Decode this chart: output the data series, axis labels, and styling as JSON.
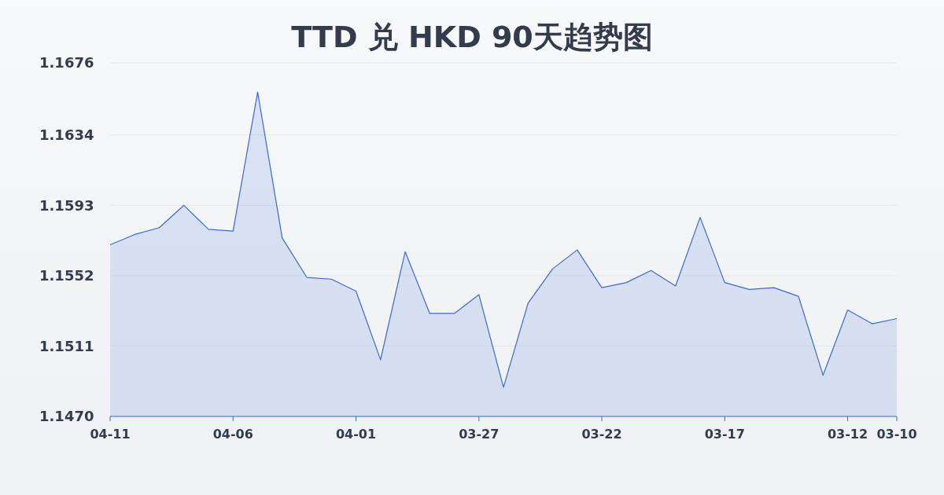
{
  "chart_data": {
    "type": "area",
    "title": "TTD 兑 HKD 90天趋势图",
    "categories": [
      "04-11",
      null,
      null,
      null,
      null,
      "04-06",
      null,
      null,
      null,
      null,
      "04-01",
      null,
      null,
      null,
      null,
      "03-27",
      null,
      null,
      null,
      null,
      "03-22",
      null,
      null,
      null,
      null,
      "03-17",
      null,
      null,
      null,
      null,
      "03-12",
      null,
      "03-10"
    ],
    "series": [
      {
        "color": "#3a6bd4",
        "values": [
          1.157,
          1.1576,
          1.158,
          1.1593,
          1.1579,
          1.1578,
          1.1659,
          1.1574,
          1.1551,
          1.155,
          1.1543,
          1.1503,
          1.1566,
          1.153,
          1.153,
          1.1541,
          1.1487,
          1.1536,
          1.1556,
          1.1567,
          1.1545,
          1.1548,
          1.1555,
          1.1546,
          1.1586,
          1.1548,
          1.1544,
          1.1545,
          1.154,
          1.1494,
          1.1532,
          1.1524,
          1.1527
        ]
      }
    ],
    "ylim": [
      1.147,
      1.1676
    ],
    "yticks": [
      {
        "value": 1.147,
        "label": "1.1470"
      },
      1.1511,
      1.1552,
      1.1593,
      1.1634,
      1.1676
    ],
    "grid": "y"
  }
}
